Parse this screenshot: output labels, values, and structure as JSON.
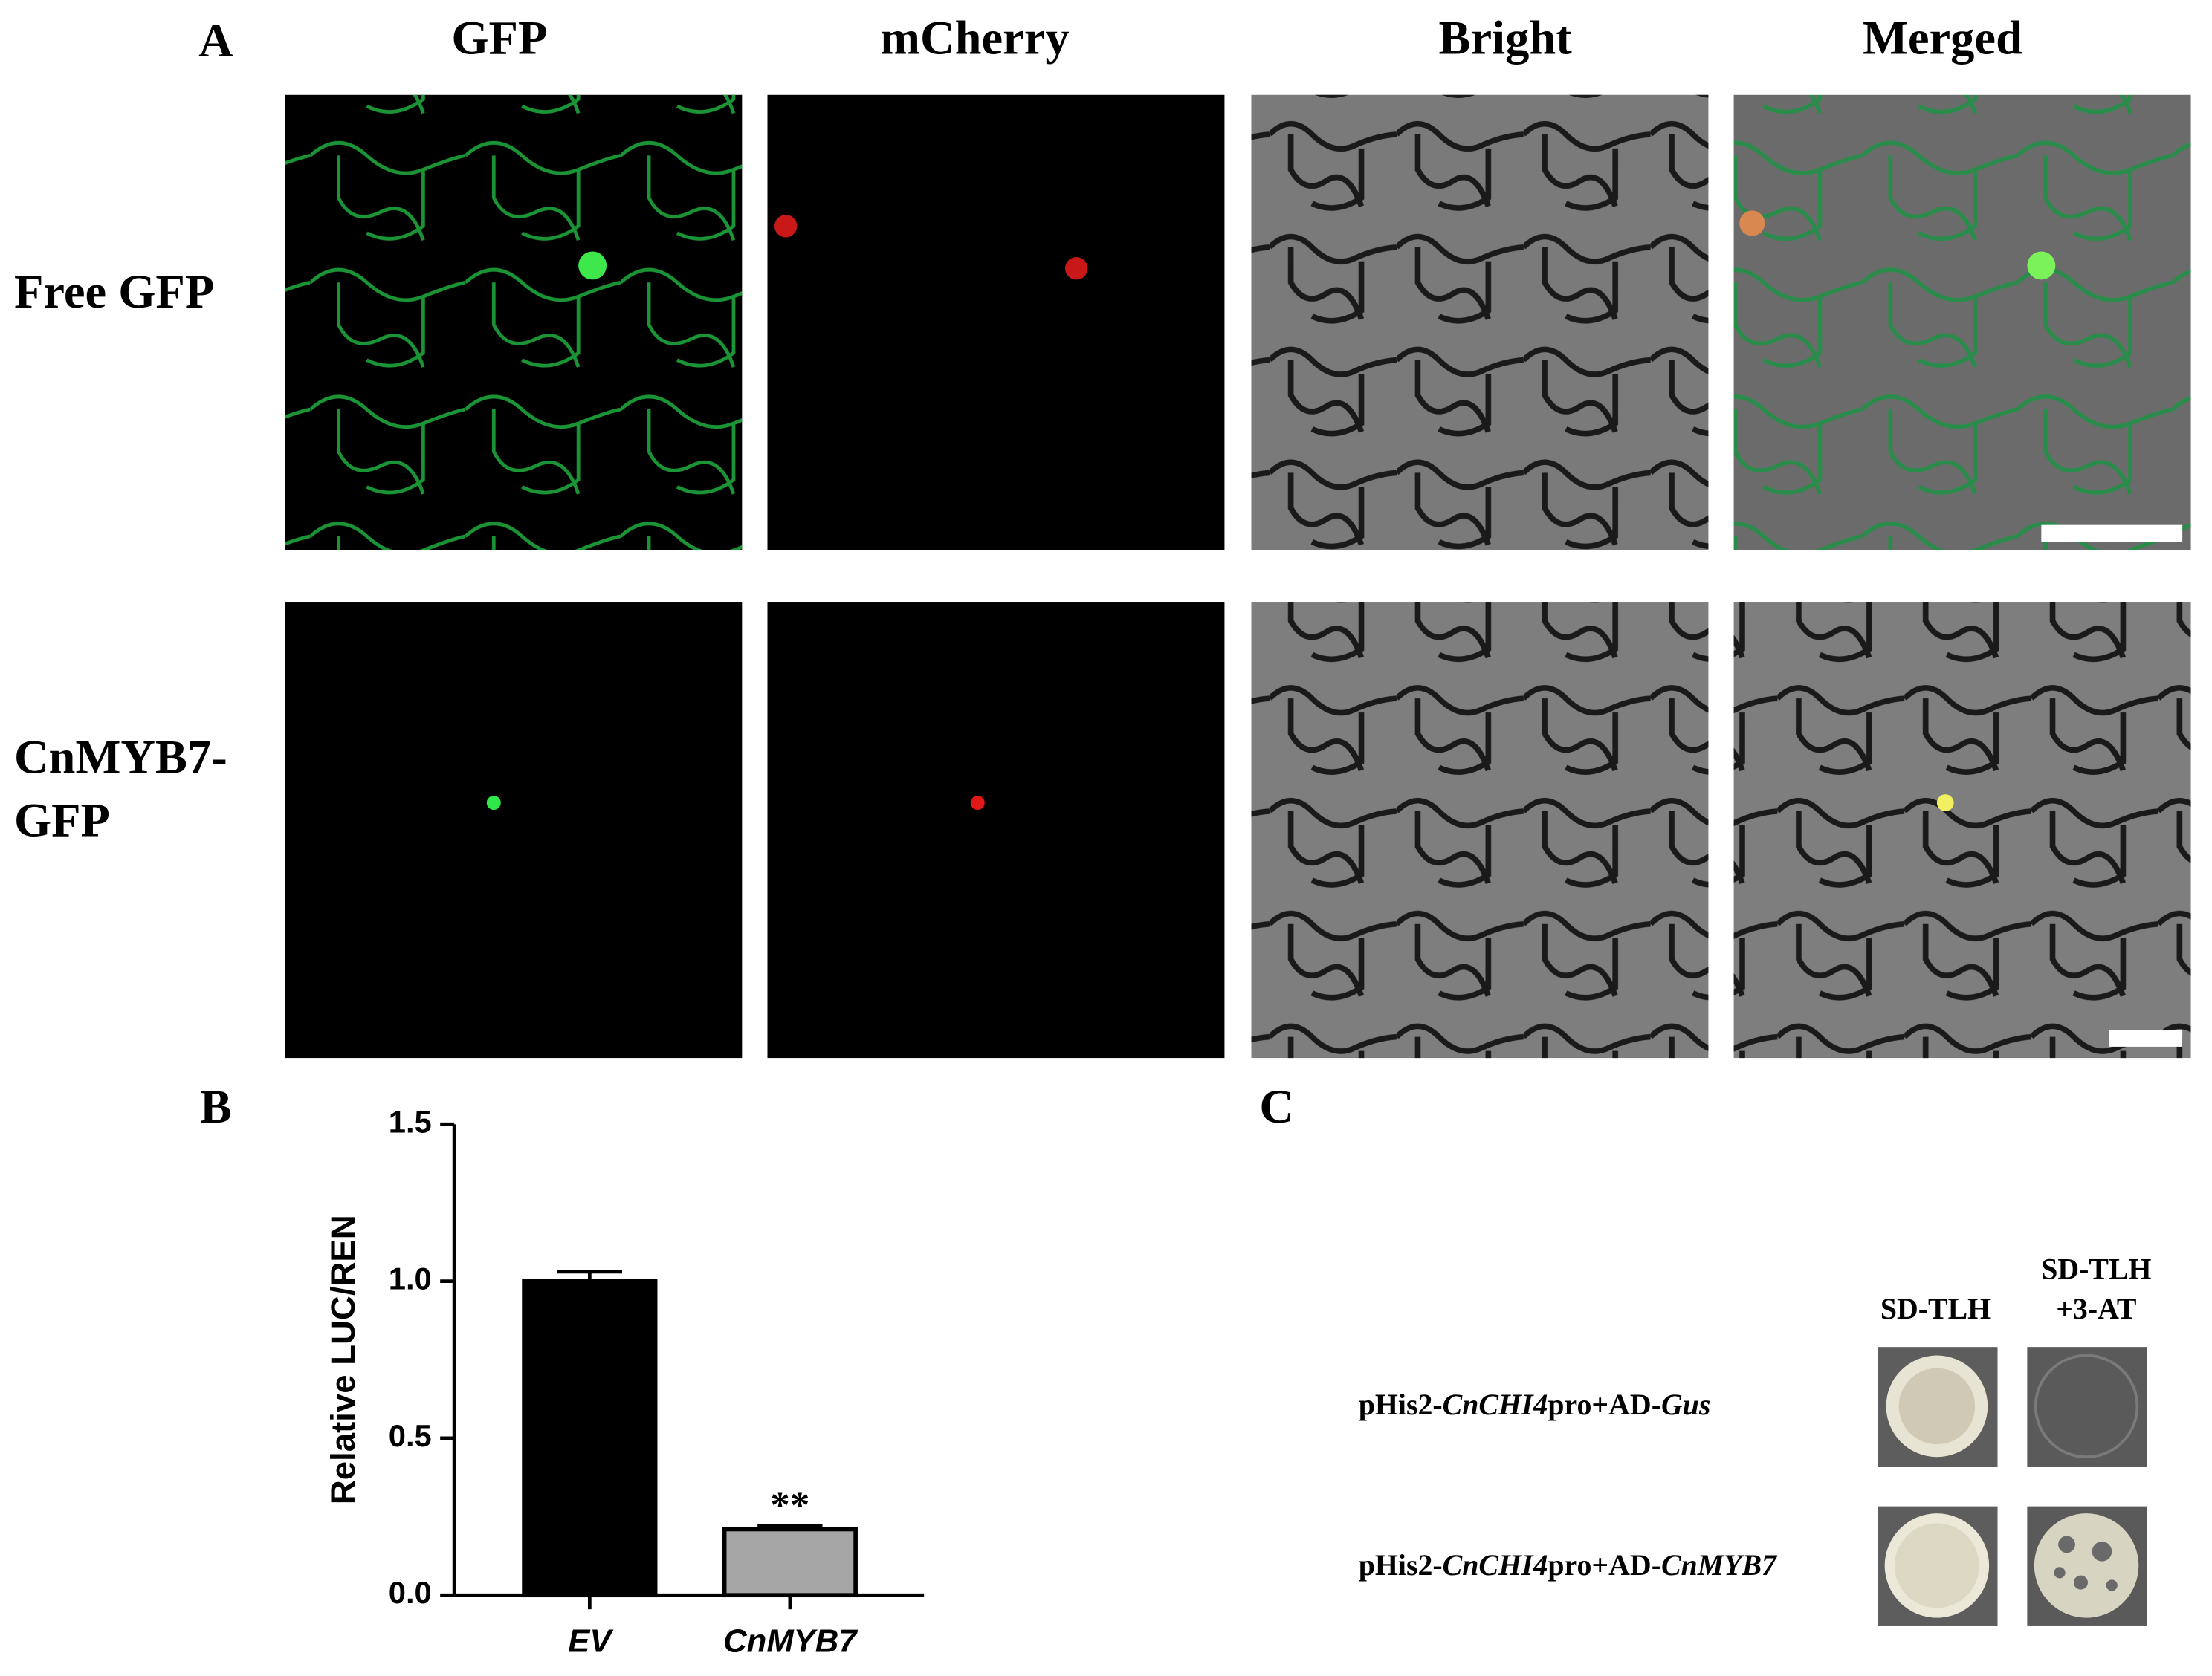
{
  "panel_a": {
    "label": "A",
    "columns": [
      "GFP",
      "mCherry",
      "Bright",
      "Merged"
    ],
    "rows": [
      [
        "Free GFP"
      ],
      [
        "CnMYB7-",
        "GFP"
      ]
    ]
  },
  "chart_data": {
    "type": "bar",
    "panel_label": "B",
    "ylabel": "Relative LUC/REN",
    "categories": [
      "EV",
      "CnMYB7"
    ],
    "values": [
      1.0,
      0.21
    ],
    "errors": [
      0.03,
      0.01
    ],
    "significance": [
      null,
      "**"
    ],
    "colors": [
      "#000000",
      "#a6a6a6"
    ],
    "ylim": [
      0,
      1.5
    ],
    "yticks": [
      {
        "value": 0,
        "label": "0.0"
      },
      {
        "value": 0.5,
        "label": "0.5"
      },
      {
        "value": 1,
        "label": "1.0"
      },
      {
        "value": 1.5,
        "label": "1.5"
      }
    ]
  },
  "panel_c": {
    "label": "C",
    "columns": [
      [
        "SD-TLH"
      ],
      [
        "SD-TLH",
        "+3-AT"
      ]
    ],
    "rows": [
      [
        {
          "text": "pHis2-"
        },
        {
          "text": "CnCHI4",
          "italic": true
        },
        {
          "text": "pro+AD-"
        },
        {
          "text": "Gus",
          "italic": true
        }
      ],
      [
        {
          "text": "pHis2-"
        },
        {
          "text": "CnCHI4",
          "italic": true
        },
        {
          "text": "pro+AD-"
        },
        {
          "text": "CnMYB7",
          "italic": true
        }
      ]
    ]
  }
}
